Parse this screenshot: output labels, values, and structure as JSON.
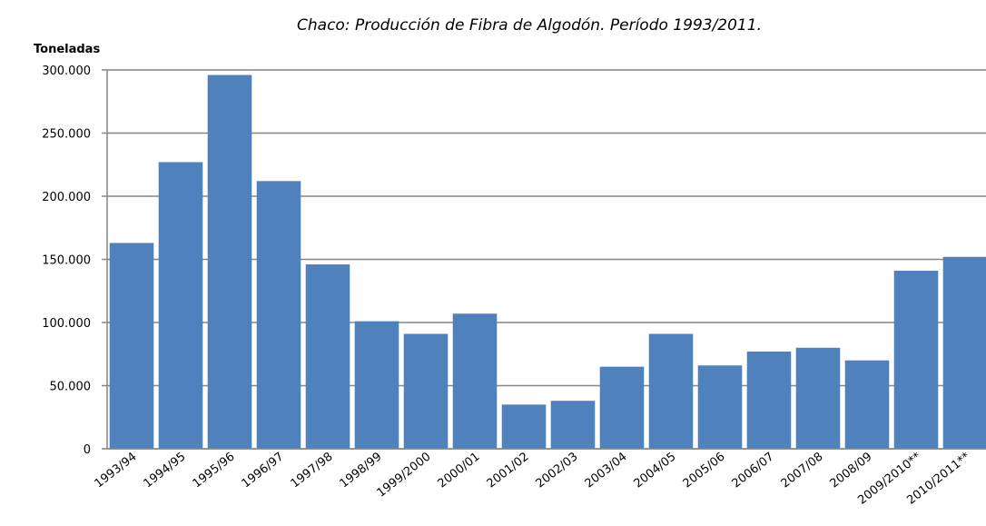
{
  "chart_data": {
    "type": "bar",
    "title": "Chaco: Producción de Fibra de Algodón. Período 1993/2011.",
    "y_label": "Toneladas",
    "categories": [
      "1993/94",
      "1994/95",
      "1995/96",
      "1996/97",
      "1997/98",
      "1998/99",
      "1999/2000",
      "2000/01",
      "2001/02",
      "2002/03",
      "2003/04",
      "2004/05",
      "2005/06",
      "2006/07",
      "2007/08",
      "2008/09",
      "2009/2010**",
      "2010/2011**"
    ],
    "values": [
      163000,
      227000,
      296000,
      212000,
      146000,
      101000,
      91000,
      107000,
      35000,
      38000,
      65000,
      91000,
      66000,
      77000,
      80000,
      70000,
      141000,
      152000
    ],
    "color": "#4f81bd",
    "ylim": [
      0,
      300000
    ],
    "yticks": [
      0,
      {
        "value": 50000,
        "label": "50.000"
      },
      {
        "value": 100000,
        "label": "100.000"
      },
      {
        "value": 150000,
        "label": "150.000"
      },
      {
        "value": 200000,
        "label": "200.000"
      },
      {
        "value": 250000,
        "label": "250.000"
      },
      {
        "value": 300000,
        "label": "300.000"
      }
    ],
    "grid": true
  }
}
